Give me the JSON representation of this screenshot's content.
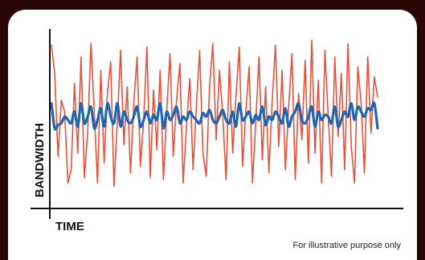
{
  "chart_data": {
    "type": "line",
    "title": "",
    "xlabel": "TIME",
    "ylabel": "BANDWIDTH",
    "x_ticks": false,
    "y_ticks": false,
    "grid": false,
    "legend": "none",
    "ylim": [
      0,
      100
    ],
    "x": [
      0,
      1,
      2,
      3,
      4,
      5,
      6,
      7,
      8,
      9,
      10,
      11,
      12,
      13,
      14,
      15,
      16,
      17,
      18,
      19,
      20,
      21,
      22,
      23,
      24,
      25,
      26,
      27,
      28,
      29,
      30,
      31,
      32,
      33,
      34,
      35,
      36,
      37,
      38,
      39,
      40,
      41,
      42,
      43,
      44,
      45,
      46,
      47,
      48,
      49,
      50,
      51,
      52,
      53,
      54,
      55,
      56,
      57,
      58,
      59,
      60,
      61,
      62,
      63,
      64,
      65,
      66,
      67,
      68,
      69,
      70,
      71,
      72,
      73,
      74,
      75,
      76,
      77,
      78,
      79,
      80,
      81,
      82,
      83,
      84,
      85,
      86,
      87,
      88,
      89,
      90,
      91,
      92,
      93,
      94,
      95,
      96,
      97,
      98,
      99
    ],
    "series": [
      {
        "color": "#e8503a",
        "values": [
          95,
          78,
          28,
          62,
          55,
          12,
          20,
          72,
          30,
          88,
          15,
          42,
          96,
          55,
          12,
          80,
          24,
          66,
          85,
          10,
          48,
          92,
          35,
          70,
          18,
          60,
          88,
          22,
          50,
          94,
          15,
          68,
          32,
          80,
          14,
          55,
          90,
          28,
          62,
          84,
          12,
          46,
          75,
          20,
          58,
          92,
          30,
          16,
          70,
          96,
          38,
          80,
          52,
          14,
          85,
          30,
          64,
          94,
          22,
          56,
          82,
          12,
          48,
          88,
          26,
          70,
          18,
          62,
          95,
          34,
          80,
          20,
          58,
          90,
          14,
          66,
          38,
          86,
          24,
          98,
          30,
          74,
          12,
          92,
          52,
          16,
          88,
          40,
          78,
          20,
          96,
          34,
          12,
          82,
          60,
          18,
          88,
          42,
          76,
          64
        ]
      },
      {
        "color": "#1f66b0",
        "values": [
          60,
          45,
          47,
          48,
          52,
          50,
          48,
          55,
          46,
          60,
          48,
          52,
          58,
          45,
          50,
          57,
          46,
          60,
          52,
          48,
          60,
          46,
          55,
          50,
          48,
          52,
          58,
          46,
          50,
          55,
          48,
          53,
          50,
          60,
          45,
          55,
          50,
          53,
          58,
          48,
          52,
          50,
          55,
          52,
          50,
          48,
          54,
          52,
          56,
          50,
          48,
          52,
          56,
          50,
          48,
          55,
          46,
          60,
          50,
          52,
          55,
          48,
          53,
          50,
          58,
          47,
          52,
          50,
          55,
          52,
          48,
          57,
          46,
          52,
          55,
          60,
          50,
          48,
          52,
          58,
          46,
          55,
          50,
          53,
          52,
          48,
          58,
          46,
          50,
          55,
          52,
          60,
          50,
          58,
          55,
          52,
          57,
          56,
          60,
          45
        ]
      }
    ]
  },
  "footnote": "For illustrative purpose only"
}
